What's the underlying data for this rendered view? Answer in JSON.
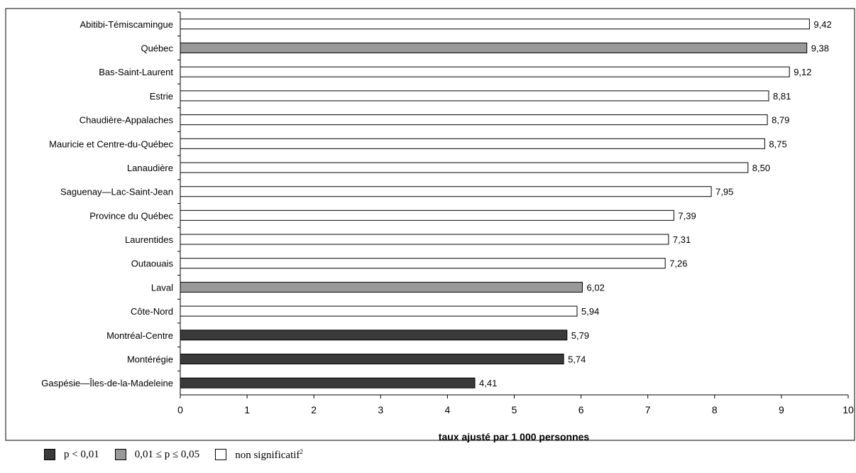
{
  "chart_data": {
    "type": "bar",
    "orientation": "horizontal",
    "categories": [
      "Abitibi-Témiscamingue",
      "Québec",
      "Bas-Saint-Laurent",
      "Estrie",
      "Chaudière-Appalaches",
      "Mauricie et Centre-du-Québec",
      "Lanaudière",
      "Saguenay—Lac-Saint-Jean",
      "Province du Québec",
      "Laurentides",
      "Outaouais",
      "Laval",
      "Côte-Nord",
      "Montréal-Centre",
      "Montérégie",
      "Gaspésie—Îles-de-la-Madeleine"
    ],
    "values": [
      9.42,
      9.38,
      9.12,
      8.81,
      8.79,
      8.75,
      8.5,
      7.95,
      7.39,
      7.31,
      7.26,
      6.02,
      5.94,
      5.79,
      5.74,
      4.41
    ],
    "value_labels": [
      "9,42",
      "9,38",
      "9,12",
      "8,81",
      "8,79",
      "8,75",
      "8,50",
      "7,95",
      "7,39",
      "7,31",
      "7,26",
      "6,02",
      "5,94",
      "5,79",
      "5,74",
      "4,41"
    ],
    "significance": [
      "ns",
      "p05",
      "ns",
      "ns",
      "ns",
      "ns",
      "ns",
      "ns",
      "ns",
      "ns",
      "ns",
      "p05",
      "ns",
      "p01",
      "p01",
      "p01"
    ],
    "xlabel": "taux ajusté par 1 000 personnes",
    "xlim": [
      0,
      10
    ],
    "xticks": [
      "0",
      "1",
      "2",
      "3",
      "4",
      "5",
      "6",
      "7",
      "8",
      "9",
      "10"
    ],
    "grid": false,
    "legend_position": "bottom-left",
    "colors": {
      "p01": "#3a3a3a",
      "p05": "#999999",
      "ns": "#ffffff",
      "border": "#000000"
    },
    "legend": [
      {
        "key": "p01",
        "label": "p < 0,01",
        "sup": ""
      },
      {
        "key": "p05",
        "label": "0,01 ≤ p ≤ 0,05",
        "sup": ""
      },
      {
        "key": "ns",
        "label": "non significatif",
        "sup": "2"
      }
    ]
  }
}
